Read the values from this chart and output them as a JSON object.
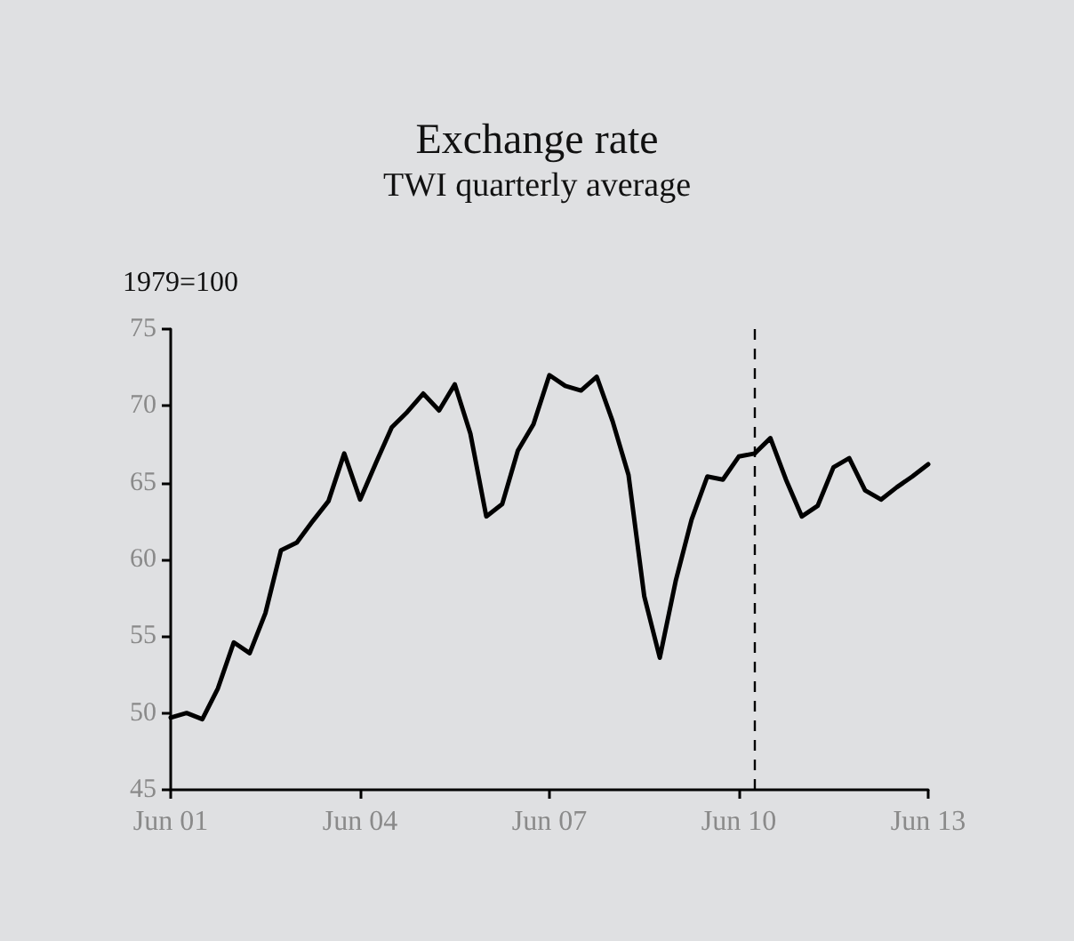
{
  "chart_data": {
    "type": "line",
    "title": "Exchange rate",
    "subtitle": "TWI quarterly average",
    "ylabel": "1979=100",
    "x": [
      "2001-06",
      "2001-09",
      "2001-12",
      "2002-03",
      "2002-06",
      "2002-09",
      "2002-12",
      "2003-03",
      "2003-06",
      "2003-09",
      "2003-12",
      "2004-03",
      "2004-06",
      "2004-09",
      "2004-12",
      "2005-03",
      "2005-06",
      "2005-09",
      "2005-12",
      "2006-03",
      "2006-06",
      "2006-09",
      "2006-12",
      "2007-03",
      "2007-06",
      "2007-09",
      "2007-12",
      "2008-03",
      "2008-06",
      "2008-09",
      "2008-12",
      "2009-03",
      "2009-06",
      "2009-09",
      "2009-12",
      "2010-03",
      "2010-06",
      "2010-09",
      "2010-12",
      "2011-03",
      "2011-06",
      "2011-09",
      "2011-12",
      "2012-03",
      "2012-06",
      "2012-09",
      "2012-12",
      "2013-03",
      "2013-06"
    ],
    "series": [
      {
        "color": "#000000",
        "values": [
          49.7,
          50.0,
          49.6,
          51.6,
          54.6,
          53.9,
          56.5,
          60.6,
          61.1,
          62.5,
          63.8,
          66.9,
          63.9,
          66.3,
          68.6,
          69.6,
          70.8,
          69.7,
          71.4,
          68.2,
          62.8,
          63.6,
          67.1,
          68.8,
          72.0,
          71.3,
          71.0,
          71.9,
          69.0,
          65.5,
          57.6,
          53.6,
          58.6,
          62.6,
          65.4,
          65.2,
          66.7,
          66.9,
          67.9,
          65.2,
          62.8,
          63.5,
          66.0,
          66.6,
          64.5,
          63.9,
          64.7,
          65.4,
          66.2
        ]
      }
    ],
    "xlim": [
      "2001-06",
      "2013-06"
    ],
    "xticks": [
      {
        "value": "2001-06",
        "label": "Jun 01"
      },
      {
        "value": "2004-06",
        "label": "Jun 04"
      },
      {
        "value": "2007-06",
        "label": "Jun 07"
      },
      {
        "value": "2010-06",
        "label": "Jun 10"
      },
      {
        "value": "2013-06",
        "label": "Jun 13"
      }
    ],
    "ylim": [
      45,
      75
    ],
    "yticks": [
      45,
      50,
      55,
      60,
      65,
      70,
      75
    ],
    "ref_lines": [
      {
        "axis": "x",
        "value": "2010-09",
        "color": "#000000",
        "line_style": "dashed"
      }
    ],
    "marker": "none",
    "line_style": "solid"
  }
}
